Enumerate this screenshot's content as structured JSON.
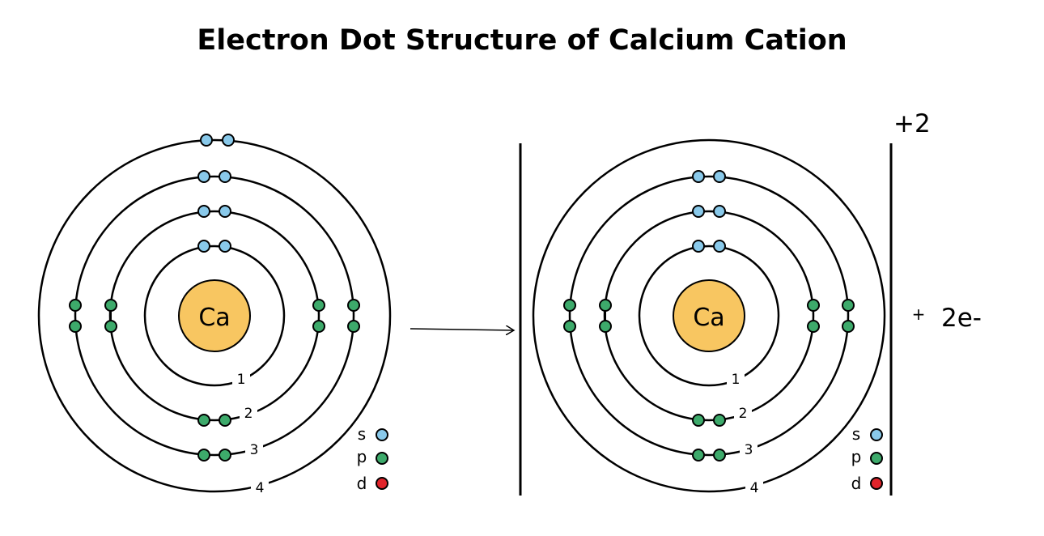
{
  "title": "Electron Dot Structure of Calcium Cation",
  "atoms": [
    {
      "symbol": "Ca",
      "shells": [
        {
          "label": "1",
          "electrons": 2
        },
        {
          "label": "2",
          "electrons": 8
        },
        {
          "label": "3",
          "electrons": 8
        },
        {
          "label": "4",
          "electrons": 2
        }
      ]
    },
    {
      "symbol": "Ca",
      "shells": [
        {
          "label": "1",
          "electrons": 2
        },
        {
          "label": "2",
          "electrons": 8
        },
        {
          "label": "3",
          "electrons": 8
        },
        {
          "label": "4",
          "electrons": 0
        }
      ]
    }
  ],
  "charge": "+2",
  "plus": "+",
  "released": "2e-",
  "legend": [
    {
      "label": "s",
      "color": "#89c9ea"
    },
    {
      "label": "p",
      "color": "#3daa6b"
    },
    {
      "label": "d",
      "color": "#e1242b"
    }
  ],
  "colors": {
    "nucleus": "#f8c661",
    "s_electron": "#89c9ea",
    "p_electron": "#3daa6b",
    "line": "#000000"
  }
}
